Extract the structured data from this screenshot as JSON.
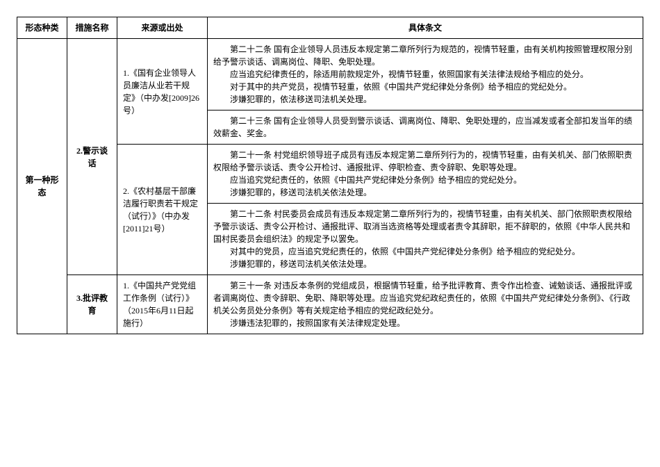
{
  "headers": {
    "type": "形态种类",
    "measure": "措施名称",
    "source": "来源或出处",
    "detail": "具体条文"
  },
  "typeLabel": "第一种形态",
  "rows": [
    {
      "measure": "2.警示谈话",
      "source": "1.《国有企业领导人员廉洁从业若干规定》（中办发[2009]26号）",
      "detail": "　　第二十二条 国有企业领导人员违反本规定第二章所列行为规范的，视情节轻重，由有关机构按照管理权限分别给予警示谈话、调离岗位、降职、免职处理。\n　　应当追究纪律责任的，除适用前款规定外，视情节轻重，依照国家有关法律法规给予相应的处分。\n　　对于其中的共产党员，视情节轻重，依照《中国共产党纪律处分条例》给予相应的党纪处分。\n　　涉嫌犯罪的，依法移送司法机关处理。"
    },
    {
      "measure": "",
      "source": "",
      "detail": "　　第二十三条 国有企业领导人员受到警示谈话、调离岗位、降职、免职处理的，应当减发或者全部扣发当年的绩效薪金、奖金。"
    },
    {
      "measure": "",
      "source": "2.《农村基层干部廉洁履行职责若干规定（试行）》（中办发[2011]21号）",
      "detail": "　　第二十一条 村党组织领导班子成员有违反本规定第二章所列行为的，视情节轻重，由有关机关、部门依照职责权限给予警示谈话、责令公开检讨、通报批评、停职检查、责令辞职、免职等处理。\n　　应当追究党纪责任的，依照《中国共产党纪律处分条例》给予相应的党纪处分。\n　　涉嫌犯罪的，移送司法机关依法处理。"
    },
    {
      "measure": "",
      "source": "",
      "detail": "　　第二十二条 村民委员会成员有违反本规定第二章所列行为的，视情节轻重，由有关机关、部门依照职责权限给予警示谈话、责令公开检讨、通报批评、取消当选资格等处理或者责令其辞职，拒不辞职的，依照《中华人民共和国村民委员会组织法》的规定予以罢免。\n　　对其中的党员，应当追究党纪责任的，依照《中国共产党纪律处分条例》给予相应的党纪处分。\n　　涉嫌犯罪的，移送司法机关依法处理。"
    },
    {
      "measure": "3.批评教育",
      "source": "1.《中国共产党党组工作条例（试行）》（2015年6月11日起施行）",
      "detail": "　　第三十一条 对违反本条例的党组成员，根据情节轻重，给予批评教育、责令作出检查、诫勉谈话、通报批评或者调离岗位、责令辞职、免职、降职等处理。应当追究党纪政纪责任的，依照《中国共产党纪律处分条例》、《行政机关公务员处分条例》等有关规定给予相应的党纪政纪处分。\n　　涉嫌违法犯罪的，按照国家有关法律规定处理。"
    }
  ]
}
